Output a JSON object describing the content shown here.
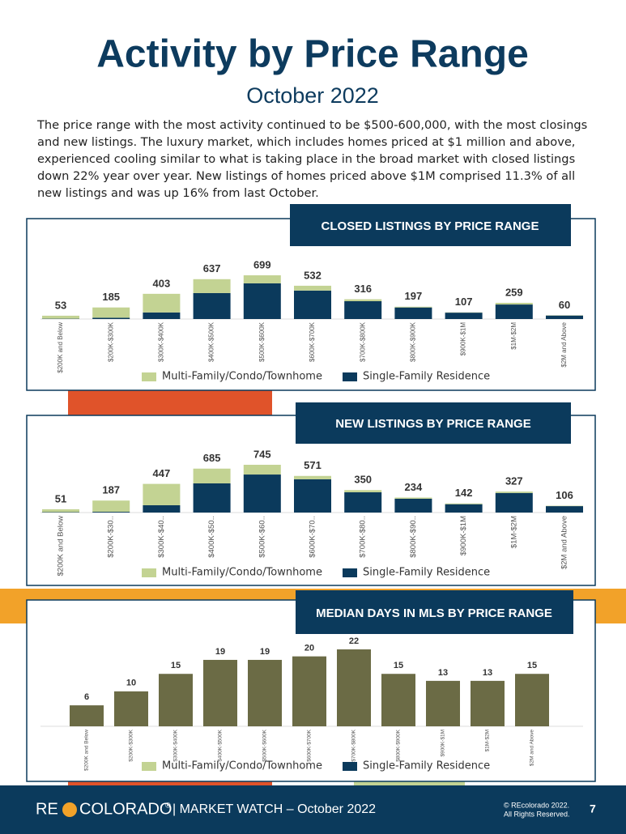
{
  "header": {
    "title": "Activity by Price Range",
    "subtitle": "October 2022",
    "intro": "The price range with the most activity continued to be $500-600,000, with the most closings and new listings. The luxury market, which includes homes priced at $1 million and above, experienced cooling similar to what is taking place in the broad market with closed listings down 22% year over year. New listings of homes priced above $1M comprised 11.3% of all new listings and was up 16% from last October."
  },
  "chart_data": [
    {
      "type": "stacked_bar",
      "title": "CLOSED LISTINGS BY PRICE RANGE",
      "categories": [
        "$200K and Below",
        "$200K-$300K",
        "$300K-$400K",
        "$400K-$500K",
        "$500K-$600K",
        "$600K-$700K",
        "$700K-$800K",
        "$800K-$900K",
        "$900K-$1M",
        "$1M-$2M",
        "$2M and Above"
      ],
      "series": [
        {
          "name": "Multi-Family/Condo/Townhome",
          "color": "#c3d393",
          "values": [
            48,
            165,
            298,
            222,
            129,
            77,
            31,
            12,
            5,
            27,
            4
          ]
        },
        {
          "name": "Single-Family Residence",
          "color": "#0b3a5c",
          "values": [
            5,
            20,
            105,
            415,
            570,
            455,
            285,
            185,
            102,
            232,
            56
          ]
        }
      ],
      "totals": [
        53,
        185,
        403,
        637,
        699,
        532,
        316,
        197,
        107,
        259,
        60
      ]
    },
    {
      "type": "stacked_bar",
      "title": "NEW LISTINGS BY PRICE RANGE",
      "categories": [
        "$200K and Below",
        "$200K-$30..",
        "$300K-$40..",
        "$400K-$50..",
        "$500K-$60..",
        "$600K-$70..",
        "$700K-$80..",
        "$800K-$90..",
        "$900K-$1M",
        "$1M-$2M",
        "$2M and Above"
      ],
      "series": [
        {
          "name": "Multi-Family/Condo/Townhome",
          "color": "#c3d393",
          "values": [
            45,
            175,
            333,
            230,
            152,
            53,
            34,
            19,
            12,
            22,
            6
          ]
        },
        {
          "name": "Single-Family Residence",
          "color": "#0b3a5c",
          "values": [
            6,
            12,
            114,
            455,
            593,
            518,
            316,
            215,
            130,
            305,
            100
          ]
        }
      ],
      "totals": [
        51,
        187,
        447,
        685,
        745,
        571,
        350,
        234,
        142,
        327,
        106
      ]
    },
    {
      "type": "bar",
      "title": "MEDIAN DAYS IN MLS BY PRICE RANGE",
      "categories": [
        "$200K and Below",
        "$200K-$300K",
        "$300K-$400K",
        "$400K-$500K",
        "$500K-$600K",
        "$600K-$700K",
        "$700K-$800K",
        "$800K-$900K",
        "$900K-$1M",
        "$1M-$2M",
        "$2M and Above"
      ],
      "values": [
        6,
        10,
        15,
        19,
        19,
        20,
        22,
        15,
        13,
        13,
        15
      ],
      "color": "#6b6b45",
      "legend": [
        {
          "name": "Multi-Family/Condo/Townhome",
          "color": "#c3d393"
        },
        {
          "name": "Single-Family Residence",
          "color": "#0b3a5c"
        }
      ]
    }
  ],
  "footer": {
    "brand_left": "RE",
    "brand_right": "COLORADO",
    "mark": "®",
    "label": "| MARKET WATCH – October 2022",
    "copyright": "© REcolorado 2022.",
    "rights": "All Rights Reserved.",
    "page": "7"
  }
}
